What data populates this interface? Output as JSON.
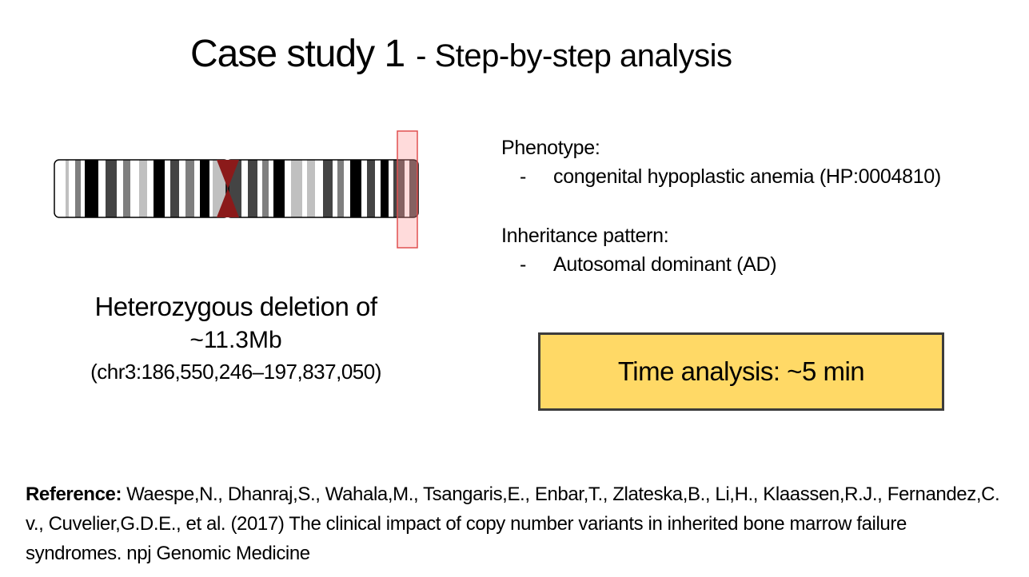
{
  "title": {
    "main": "Case study 1",
    "sub": "- Step-by-step analysis"
  },
  "chromosome": {
    "name": "chr3",
    "band_colors": {
      "black": "#000000",
      "dark": "#444444",
      "mid": "#7f7f7f",
      "light": "#c0c0c0",
      "white": "#ffffff",
      "centromere": "#8b1a1a"
    },
    "highlight_color": "#ff9999"
  },
  "deletion": {
    "line1": "Heterozygous deletion of",
    "line2": "~11.3Mb",
    "line3": "(chr3:186,550,246–197,837,050)"
  },
  "phenotype": {
    "label": "Phenotype:",
    "items": [
      {
        "dash": "-",
        "text": "congenital hypoplastic anemia (HP:0004810)"
      }
    ]
  },
  "inheritance": {
    "label": "Inheritance pattern:",
    "items": [
      {
        "dash": "-",
        "text": "Autosomal dominant (AD)"
      }
    ]
  },
  "time_box": {
    "text": "Time analysis: ~5 min",
    "fill_color": "#ffd966",
    "border_color": "#3c3c3c"
  },
  "reference": {
    "label": "Reference:",
    "text": "Waespe,N., Dhanraj,S., Wahala,M., Tsangaris,E., Enbar,T., Zlateska,B., Li,H., Klaassen,R.J., Fernandez,C. v., Cuvelier,G.D.E., et al. (2017) The clinical impact of copy number variants in inherited bone marrow failure syndromes. npj Genomic Medicine"
  }
}
